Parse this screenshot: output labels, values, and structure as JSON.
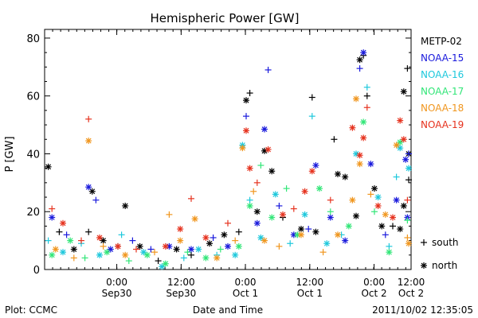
{
  "chart_data": {
    "type": "scatter",
    "title": "Hemispheric Power [GW]",
    "xlabel": "Date and Time",
    "ylabel": "P [GW]",
    "ylim": [
      0,
      83
    ],
    "xlim": [
      0,
      1
    ],
    "yticks": [
      0,
      20,
      40,
      60,
      80
    ],
    "xticks": [
      {
        "pos": 0.1969,
        "top": "0:00",
        "bottom": "Sep30"
      },
      {
        "pos": 0.3725,
        "top": "12:00",
        "bottom": "Sep30"
      },
      {
        "pos": 0.5479,
        "top": "0:00",
        "bottom": "Oct 1"
      },
      {
        "pos": 0.7236,
        "top": "12:00",
        "bottom": "Oct 1"
      },
      {
        "pos": 0.899,
        "top": "0:00",
        "bottom": "Oct 2"
      },
      {
        "pos": 1.0,
        "top": "12:00",
        "bottom": "Oct 2"
      }
    ],
    "minor_x_step": 0.0219,
    "minor_y_step": 5,
    "legend_position": "right",
    "series": [
      {
        "name": "METP-02",
        "color": "#000000",
        "values": [
          {
            "x": 0.01,
            "y": 35.5,
            "m": "north"
          },
          {
            "x": 0.04,
            "y": 13,
            "m": "south"
          },
          {
            "x": 0.08,
            "y": 7,
            "m": "north"
          },
          {
            "x": 0.12,
            "y": 13,
            "m": "south"
          },
          {
            "x": 0.13,
            "y": 27,
            "m": "north"
          },
          {
            "x": 0.16,
            "y": 10,
            "m": "north"
          },
          {
            "x": 0.2,
            "y": 8,
            "m": "south"
          },
          {
            "x": 0.22,
            "y": 22,
            "m": "north"
          },
          {
            "x": 0.26,
            "y": 8,
            "m": "north"
          },
          {
            "x": 0.31,
            "y": 3,
            "m": "south"
          },
          {
            "x": 0.36,
            "y": 7,
            "m": "north"
          },
          {
            "x": 0.4,
            "y": 5,
            "m": "south"
          },
          {
            "x": 0.45,
            "y": 9,
            "m": "north"
          },
          {
            "x": 0.49,
            "y": 12,
            "m": "north"
          },
          {
            "x": 0.53,
            "y": 13,
            "m": "south"
          },
          {
            "x": 0.55,
            "y": 58.5,
            "m": "north"
          },
          {
            "x": 0.56,
            "y": 61,
            "m": "south"
          },
          {
            "x": 0.58,
            "y": 20,
            "m": "north"
          },
          {
            "x": 0.6,
            "y": 41,
            "m": "north"
          },
          {
            "x": 0.62,
            "y": 34,
            "m": "north"
          },
          {
            "x": 0.65,
            "y": 18,
            "m": "south"
          },
          {
            "x": 0.7,
            "y": 14,
            "m": "north"
          },
          {
            "x": 0.73,
            "y": 59.5,
            "m": "south"
          },
          {
            "x": 0.74,
            "y": 13,
            "m": "north"
          },
          {
            "x": 0.79,
            "y": 45,
            "m": "south"
          },
          {
            "x": 0.8,
            "y": 33,
            "m": "north"
          },
          {
            "x": 0.82,
            "y": 32,
            "m": "north"
          },
          {
            "x": 0.85,
            "y": 18.5,
            "m": "north"
          },
          {
            "x": 0.86,
            "y": 72.5,
            "m": "north"
          },
          {
            "x": 0.87,
            "y": 74,
            "m": "south"
          },
          {
            "x": 0.88,
            "y": 60,
            "m": "south"
          },
          {
            "x": 0.9,
            "y": 28,
            "m": "north"
          },
          {
            "x": 0.92,
            "y": 15,
            "m": "north"
          },
          {
            "x": 0.95,
            "y": 15,
            "m": "south"
          },
          {
            "x": 0.97,
            "y": 14,
            "m": "north"
          },
          {
            "x": 0.98,
            "y": 61.5,
            "m": "north"
          },
          {
            "x": 0.99,
            "y": 69.5,
            "m": "south"
          },
          {
            "x": 0.995,
            "y": 40,
            "m": "north"
          },
          {
            "x": 0.98,
            "y": 22,
            "m": "north"
          },
          {
            "x": 1.0,
            "y": 31,
            "m": "south"
          }
        ]
      },
      {
        "name": "NOAA-15",
        "color": "#1a1adc",
        "values": [
          {
            "x": 0.02,
            "y": 18,
            "m": "north"
          },
          {
            "x": 0.06,
            "y": 12,
            "m": "south"
          },
          {
            "x": 0.12,
            "y": 28.5,
            "m": "north"
          },
          {
            "x": 0.14,
            "y": 24,
            "m": "south"
          },
          {
            "x": 0.18,
            "y": 7,
            "m": "north"
          },
          {
            "x": 0.24,
            "y": 10,
            "m": "south"
          },
          {
            "x": 0.29,
            "y": 7,
            "m": "south"
          },
          {
            "x": 0.34,
            "y": 8,
            "m": "north"
          },
          {
            "x": 0.4,
            "y": 7,
            "m": "north"
          },
          {
            "x": 0.46,
            "y": 11,
            "m": "south"
          },
          {
            "x": 0.5,
            "y": 8,
            "m": "north"
          },
          {
            "x": 0.55,
            "y": 53,
            "m": "south"
          },
          {
            "x": 0.58,
            "y": 16,
            "m": "north"
          },
          {
            "x": 0.6,
            "y": 48.5,
            "m": "north"
          },
          {
            "x": 0.61,
            "y": 69,
            "m": "south"
          },
          {
            "x": 0.64,
            "y": 22,
            "m": "south"
          },
          {
            "x": 0.68,
            "y": 12,
            "m": "north"
          },
          {
            "x": 0.72,
            "y": 14,
            "m": "south"
          },
          {
            "x": 0.74,
            "y": 36,
            "m": "north"
          },
          {
            "x": 0.78,
            "y": 18,
            "m": "north"
          },
          {
            "x": 0.82,
            "y": 10,
            "m": "north"
          },
          {
            "x": 0.86,
            "y": 69.5,
            "m": "south"
          },
          {
            "x": 0.87,
            "y": 75,
            "m": "north"
          },
          {
            "x": 0.89,
            "y": 36.5,
            "m": "north"
          },
          {
            "x": 0.93,
            "y": 12,
            "m": "south"
          },
          {
            "x": 0.96,
            "y": 24,
            "m": "north"
          },
          {
            "x": 0.985,
            "y": 38,
            "m": "north"
          },
          {
            "x": 1.0,
            "y": 40,
            "m": "south"
          },
          {
            "x": 0.99,
            "y": 18,
            "m": "north"
          }
        ]
      },
      {
        "name": "NOAA-16",
        "color": "#1ec8dc",
        "values": [
          {
            "x": 0.01,
            "y": 10,
            "m": "south"
          },
          {
            "x": 0.05,
            "y": 6,
            "m": "north"
          },
          {
            "x": 0.1,
            "y": 9,
            "m": "south"
          },
          {
            "x": 0.15,
            "y": 5,
            "m": "north"
          },
          {
            "x": 0.21,
            "y": 12,
            "m": "south"
          },
          {
            "x": 0.27,
            "y": 6,
            "m": "north"
          },
          {
            "x": 0.32,
            "y": 1,
            "m": "north"
          },
          {
            "x": 0.38,
            "y": 4,
            "m": "south"
          },
          {
            "x": 0.42,
            "y": 7,
            "m": "north"
          },
          {
            "x": 0.47,
            "y": 5,
            "m": "south"
          },
          {
            "x": 0.52,
            "y": 5,
            "m": "north"
          },
          {
            "x": 0.54,
            "y": 43,
            "m": "north"
          },
          {
            "x": 0.56,
            "y": 24,
            "m": "south"
          },
          {
            "x": 0.59,
            "y": 11,
            "m": "north"
          },
          {
            "x": 0.63,
            "y": 26,
            "m": "north"
          },
          {
            "x": 0.67,
            "y": 9,
            "m": "south"
          },
          {
            "x": 0.71,
            "y": 19,
            "m": "north"
          },
          {
            "x": 0.73,
            "y": 53,
            "m": "south"
          },
          {
            "x": 0.77,
            "y": 9,
            "m": "north"
          },
          {
            "x": 0.81,
            "y": 12,
            "m": "south"
          },
          {
            "x": 0.85,
            "y": 40,
            "m": "north"
          },
          {
            "x": 0.88,
            "y": 63,
            "m": "south"
          },
          {
            "x": 0.91,
            "y": 25,
            "m": "north"
          },
          {
            "x": 0.94,
            "y": 8,
            "m": "south"
          },
          {
            "x": 0.96,
            "y": 32,
            "m": "south"
          },
          {
            "x": 0.97,
            "y": 42,
            "m": "north"
          },
          {
            "x": 1.0,
            "y": 35,
            "m": "north"
          }
        ]
      },
      {
        "name": "NOAA-17",
        "color": "#32e678",
        "values": [
          {
            "x": 0.02,
            "y": 5,
            "m": "north"
          },
          {
            "x": 0.07,
            "y": 10,
            "m": "north"
          },
          {
            "x": 0.11,
            "y": 4,
            "m": "south"
          },
          {
            "x": 0.17,
            "y": 6,
            "m": "north"
          },
          {
            "x": 0.23,
            "y": 3,
            "m": "south"
          },
          {
            "x": 0.28,
            "y": 5,
            "m": "north"
          },
          {
            "x": 0.33,
            "y": 2,
            "m": "north"
          },
          {
            "x": 0.39,
            "y": 6,
            "m": "south"
          },
          {
            "x": 0.44,
            "y": 4,
            "m": "north"
          },
          {
            "x": 0.48,
            "y": 7,
            "m": "south"
          },
          {
            "x": 0.53,
            "y": 8,
            "m": "north"
          },
          {
            "x": 0.56,
            "y": 22,
            "m": "north"
          },
          {
            "x": 0.59,
            "y": 36,
            "m": "south"
          },
          {
            "x": 0.62,
            "y": 18,
            "m": "north"
          },
          {
            "x": 0.66,
            "y": 28,
            "m": "south"
          },
          {
            "x": 0.69,
            "y": 12,
            "m": "north"
          },
          {
            "x": 0.75,
            "y": 28,
            "m": "north"
          },
          {
            "x": 0.78,
            "y": 20,
            "m": "south"
          },
          {
            "x": 0.83,
            "y": 15,
            "m": "north"
          },
          {
            "x": 0.87,
            "y": 51,
            "m": "north"
          },
          {
            "x": 0.9,
            "y": 20,
            "m": "south"
          },
          {
            "x": 0.94,
            "y": 6,
            "m": "north"
          },
          {
            "x": 0.97,
            "y": 44,
            "m": "north"
          },
          {
            "x": 0.99,
            "y": 17,
            "m": "south"
          }
        ]
      },
      {
        "name": "NOAA-18",
        "color": "#f0961e",
        "values": [
          {
            "x": 0.03,
            "y": 7,
            "m": "north"
          },
          {
            "x": 0.08,
            "y": 4,
            "m": "south"
          },
          {
            "x": 0.12,
            "y": 44.5,
            "m": "north"
          },
          {
            "x": 0.16,
            "y": 8,
            "m": "south"
          },
          {
            "x": 0.22,
            "y": 5,
            "m": "north"
          },
          {
            "x": 0.3,
            "y": 6,
            "m": "south"
          },
          {
            "x": 0.34,
            "y": 19,
            "m": "south"
          },
          {
            "x": 0.37,
            "y": 10,
            "m": "north"
          },
          {
            "x": 0.41,
            "y": 17.5,
            "m": "north"
          },
          {
            "x": 0.47,
            "y": 4,
            "m": "north"
          },
          {
            "x": 0.52,
            "y": 10,
            "m": "south"
          },
          {
            "x": 0.54,
            "y": 42,
            "m": "north"
          },
          {
            "x": 0.57,
            "y": 27,
            "m": "south"
          },
          {
            "x": 0.6,
            "y": 10,
            "m": "north"
          },
          {
            "x": 0.64,
            "y": 8,
            "m": "south"
          },
          {
            "x": 0.7,
            "y": 12,
            "m": "north"
          },
          {
            "x": 0.76,
            "y": 6,
            "m": "south"
          },
          {
            "x": 0.8,
            "y": 12,
            "m": "north"
          },
          {
            "x": 0.84,
            "y": 24,
            "m": "north"
          },
          {
            "x": 0.85,
            "y": 59,
            "m": "north"
          },
          {
            "x": 0.86,
            "y": 36.5,
            "m": "north"
          },
          {
            "x": 0.89,
            "y": 26,
            "m": "south"
          },
          {
            "x": 0.93,
            "y": 19,
            "m": "north"
          },
          {
            "x": 0.96,
            "y": 43,
            "m": "north"
          },
          {
            "x": 0.99,
            "y": 11,
            "m": "south"
          },
          {
            "x": 1.0,
            "y": 9,
            "m": "north"
          }
        ]
      },
      {
        "name": "NOAA-19",
        "color": "#e6321e",
        "values": [
          {
            "x": 0.02,
            "y": 21,
            "m": "south"
          },
          {
            "x": 0.05,
            "y": 16,
            "m": "north"
          },
          {
            "x": 0.1,
            "y": 10,
            "m": "south"
          },
          {
            "x": 0.12,
            "y": 52,
            "m": "south"
          },
          {
            "x": 0.15,
            "y": 11,
            "m": "north"
          },
          {
            "x": 0.2,
            "y": 8,
            "m": "north"
          },
          {
            "x": 0.25,
            "y": 7,
            "m": "south"
          },
          {
            "x": 0.33,
            "y": 8,
            "m": "north"
          },
          {
            "x": 0.37,
            "y": 14,
            "m": "north"
          },
          {
            "x": 0.4,
            "y": 24.5,
            "m": "south"
          },
          {
            "x": 0.44,
            "y": 11,
            "m": "north"
          },
          {
            "x": 0.5,
            "y": 16,
            "m": "south"
          },
          {
            "x": 0.55,
            "y": 48,
            "m": "north"
          },
          {
            "x": 0.56,
            "y": 35,
            "m": "north"
          },
          {
            "x": 0.58,
            "y": 30,
            "m": "south"
          },
          {
            "x": 0.61,
            "y": 41.5,
            "m": "north"
          },
          {
            "x": 0.65,
            "y": 19,
            "m": "north"
          },
          {
            "x": 0.68,
            "y": 21,
            "m": "south"
          },
          {
            "x": 0.71,
            "y": 27,
            "m": "north"
          },
          {
            "x": 0.73,
            "y": 34,
            "m": "north"
          },
          {
            "x": 0.78,
            "y": 24,
            "m": "south"
          },
          {
            "x": 0.84,
            "y": 49,
            "m": "north"
          },
          {
            "x": 0.86,
            "y": 39.5,
            "m": "north"
          },
          {
            "x": 0.87,
            "y": 45.5,
            "m": "north"
          },
          {
            "x": 0.88,
            "y": 56,
            "m": "south"
          },
          {
            "x": 0.91,
            "y": 22,
            "m": "north"
          },
          {
            "x": 0.95,
            "y": 18,
            "m": "north"
          },
          {
            "x": 0.97,
            "y": 51.5,
            "m": "north"
          },
          {
            "x": 0.98,
            "y": 45,
            "m": "north"
          },
          {
            "x": 0.99,
            "y": 24,
            "m": "south"
          }
        ]
      }
    ],
    "marker_legend": [
      {
        "symbol": "+",
        "label": "south"
      },
      {
        "symbol": "*",
        "label": "north"
      }
    ]
  },
  "footer": {
    "credit": "Plot: CCMC",
    "timestamp": "2011/10/02 12:35:05"
  }
}
